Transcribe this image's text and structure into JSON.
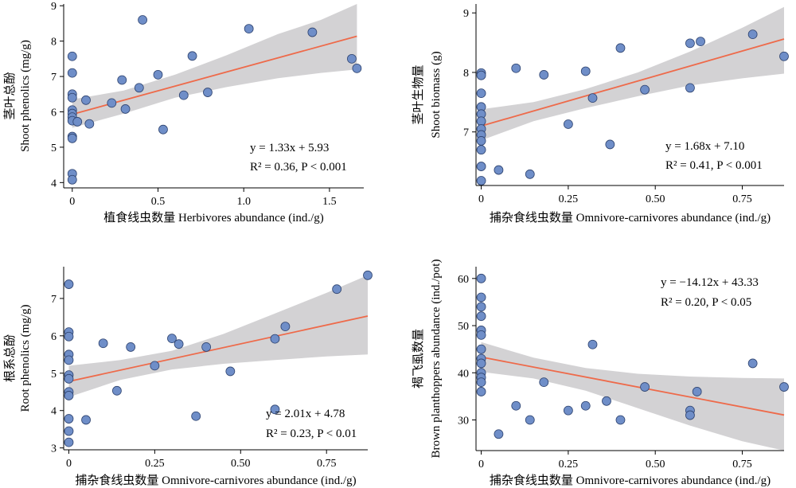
{
  "chart_data": [
    {
      "type": "scatter",
      "xlabel": "植食线虫数量 Herbivores abundance (ind./g)",
      "ylabel_cn": "茎叶总酚",
      "ylabel_en": "Shoot phenolics (mg/g)",
      "xlim": [
        -0.05,
        1.7
      ],
      "ylim": [
        3.85,
        9.05
      ],
      "xticks": [
        0,
        0.5,
        1.0,
        1.5
      ],
      "xtick_labels": [
        "0",
        "0.5",
        "1.0",
        "1.5"
      ],
      "yticks": [
        4,
        5,
        6,
        7,
        8,
        9
      ],
      "ytick_labels": [
        "4",
        "5",
        "6",
        "7",
        "8",
        "9"
      ],
      "equation": "y = 1.33x + 5.93",
      "stats": "R² = 0.36, P < 0.001",
      "fit": {
        "slope": 1.33,
        "intercept": 5.93,
        "x0": 0,
        "x1": 1.66
      },
      "band_upper": [
        [
          0,
          6.35
        ],
        [
          0.3,
          6.6
        ],
        [
          0.6,
          7.05
        ],
        [
          0.9,
          7.6
        ],
        [
          1.2,
          8.2
        ],
        [
          1.45,
          8.6
        ],
        [
          1.66,
          9.05
        ]
      ],
      "band_lower": [
        [
          0,
          5.55
        ],
        [
          0.3,
          5.95
        ],
        [
          0.6,
          6.4
        ],
        [
          0.9,
          6.7
        ],
        [
          1.2,
          6.95
        ],
        [
          1.45,
          7.1
        ],
        [
          1.66,
          7.2
        ]
      ],
      "points": [
        [
          0,
          7.57
        ],
        [
          0,
          7.1
        ],
        [
          0,
          6.5
        ],
        [
          0,
          6.4
        ],
        [
          0,
          6.05
        ],
        [
          0,
          5.95
        ],
        [
          0,
          5.85
        ],
        [
          0,
          5.75
        ],
        [
          0,
          5.3
        ],
        [
          0,
          5.25
        ],
        [
          0,
          4.25
        ],
        [
          0,
          4.08
        ],
        [
          0.03,
          5.72
        ],
        [
          0.08,
          6.33
        ],
        [
          0.1,
          5.66
        ],
        [
          0.23,
          6.25
        ],
        [
          0.29,
          6.9
        ],
        [
          0.31,
          6.08
        ],
        [
          0.39,
          6.68
        ],
        [
          0.41,
          8.6
        ],
        [
          0.5,
          7.05
        ],
        [
          0.53,
          5.5
        ],
        [
          0.65,
          6.47
        ],
        [
          0.7,
          7.58
        ],
        [
          0.79,
          6.55
        ],
        [
          1.03,
          8.35
        ],
        [
          1.4,
          8.25
        ],
        [
          1.63,
          7.5
        ],
        [
          1.66,
          7.23
        ]
      ]
    },
    {
      "type": "scatter",
      "xlabel": "捕杂食线虫数量 Omnivore-carnivores abundance (ind./g)",
      "ylabel_cn": "茎叶生物量",
      "ylabel_en": "Shoot biomass (g)",
      "xlim": [
        -0.015,
        0.87
      ],
      "ylim": [
        6.1,
        9.15
      ],
      "xticks": [
        0,
        0.25,
        0.5,
        0.75
      ],
      "xtick_labels": [
        "0",
        "0.25",
        "0.50",
        "0.75"
      ],
      "yticks": [
        7,
        8,
        9
      ],
      "ytick_labels": [
        "7",
        "8",
        "9"
      ],
      "equation": "y = 1.68x + 7.10",
      "stats": "R² = 0.41, P < 0.001",
      "fit": {
        "slope": 1.68,
        "intercept": 7.1,
        "x0": 0,
        "x1": 0.87
      },
      "band_upper": [
        [
          0,
          7.38
        ],
        [
          0.15,
          7.5
        ],
        [
          0.3,
          7.72
        ],
        [
          0.45,
          8.0
        ],
        [
          0.6,
          8.35
        ],
        [
          0.75,
          8.75
        ],
        [
          0.87,
          9.1
        ]
      ],
      "band_lower": [
        [
          0,
          6.86
        ],
        [
          0.15,
          7.18
        ],
        [
          0.3,
          7.4
        ],
        [
          0.45,
          7.6
        ],
        [
          0.6,
          7.78
        ],
        [
          0.75,
          7.9
        ],
        [
          0.87,
          7.98
        ]
      ],
      "points": [
        [
          0,
          7.99
        ],
        [
          0,
          7.95
        ],
        [
          0,
          7.65
        ],
        [
          0,
          7.42
        ],
        [
          0,
          7.3
        ],
        [
          0,
          7.18
        ],
        [
          0,
          7.05
        ],
        [
          0,
          6.95
        ],
        [
          0,
          6.85
        ],
        [
          0,
          6.7
        ],
        [
          0,
          6.42
        ],
        [
          0,
          6.18
        ],
        [
          0.05,
          6.36
        ],
        [
          0.1,
          8.07
        ],
        [
          0.14,
          6.29
        ],
        [
          0.18,
          7.96
        ],
        [
          0.25,
          7.13
        ],
        [
          0.3,
          8.02
        ],
        [
          0.32,
          7.57
        ],
        [
          0.37,
          6.79
        ],
        [
          0.4,
          8.41
        ],
        [
          0.47,
          7.71
        ],
        [
          0.6,
          7.74
        ],
        [
          0.6,
          8.49
        ],
        [
          0.63,
          8.52
        ],
        [
          0.78,
          8.64
        ],
        [
          0.87,
          8.27
        ]
      ]
    },
    {
      "type": "scatter",
      "xlabel": "捕杂食线虫数量 Omnivore-carnivores abundance (ind./g)",
      "ylabel_cn": "根系总酚",
      "ylabel_en": "Root phenolics (mg/g)",
      "xlim": [
        -0.015,
        0.87
      ],
      "ylim": [
        2.95,
        7.85
      ],
      "xticks": [
        0,
        0.25,
        0.5,
        0.75
      ],
      "xtick_labels": [
        "0",
        "0.25",
        "0.50",
        "0.75"
      ],
      "yticks": [
        3,
        4,
        5,
        6,
        7
      ],
      "ytick_labels": [
        "3",
        "4",
        "5",
        "6",
        "7"
      ],
      "equation": "y = 2.01x + 4.78",
      "stats": "R² = 0.23, P < 0.01",
      "fit": {
        "slope": 2.01,
        "intercept": 4.78,
        "x0": 0,
        "x1": 0.87
      },
      "band_upper": [
        [
          0,
          5.2
        ],
        [
          0.15,
          5.35
        ],
        [
          0.3,
          5.6
        ],
        [
          0.45,
          6.05
        ],
        [
          0.6,
          6.6
        ],
        [
          0.75,
          7.15
        ],
        [
          0.87,
          7.62
        ]
      ],
      "band_lower": [
        [
          0,
          4.36
        ],
        [
          0.15,
          4.82
        ],
        [
          0.3,
          5.1
        ],
        [
          0.45,
          5.25
        ],
        [
          0.6,
          5.35
        ],
        [
          0.75,
          5.45
        ],
        [
          0.87,
          5.5
        ]
      ],
      "points": [
        [
          0,
          7.38
        ],
        [
          0,
          6.1
        ],
        [
          0,
          5.98
        ],
        [
          0,
          5.5
        ],
        [
          0,
          5.35
        ],
        [
          0,
          4.95
        ],
        [
          0,
          4.85
        ],
        [
          0,
          4.5
        ],
        [
          0,
          4.4
        ],
        [
          0,
          3.78
        ],
        [
          0,
          3.45
        ],
        [
          0,
          3.15
        ],
        [
          0.05,
          3.75
        ],
        [
          0.1,
          5.8
        ],
        [
          0.14,
          4.53
        ],
        [
          0.18,
          5.7
        ],
        [
          0.25,
          5.2
        ],
        [
          0.3,
          5.93
        ],
        [
          0.32,
          5.78
        ],
        [
          0.37,
          3.85
        ],
        [
          0.4,
          5.7
        ],
        [
          0.47,
          5.05
        ],
        [
          0.6,
          4.03
        ],
        [
          0.6,
          5.92
        ],
        [
          0.63,
          6.25
        ],
        [
          0.78,
          7.25
        ],
        [
          0.87,
          7.62
        ]
      ]
    },
    {
      "type": "scatter",
      "xlabel": "捕杂食线虫数量 Omnivore-carnivores abundance (ind./g)",
      "ylabel_cn": "褐飞虱数量",
      "ylabel_en": "Brown planthoppers abundance (ind./pot)",
      "xlim": [
        -0.015,
        0.87
      ],
      "ylim": [
        23.5,
        62.5
      ],
      "xticks": [
        0,
        0.25,
        0.5,
        0.75
      ],
      "xtick_labels": [
        "0",
        "0.25",
        "0.50",
        "0.75"
      ],
      "yticks": [
        30,
        40,
        50,
        60
      ],
      "ytick_labels": [
        "30",
        "40",
        "50",
        "60"
      ],
      "equation": "y = −14.12x + 43.33",
      "stats": "R² = 0.20, P < 0.05",
      "fit": {
        "slope": -14.12,
        "intercept": 43.33,
        "x0": 0,
        "x1": 0.87
      },
      "band_upper": [
        [
          0,
          46.5
        ],
        [
          0.15,
          43.2
        ],
        [
          0.3,
          41.0
        ],
        [
          0.45,
          39.8
        ],
        [
          0.6,
          39.2
        ],
        [
          0.75,
          38.9
        ],
        [
          0.87,
          38.8
        ]
      ],
      "band_lower": [
        [
          0,
          40.2
        ],
        [
          0.15,
          38.8
        ],
        [
          0.3,
          36.2
        ],
        [
          0.45,
          32.5
        ],
        [
          0.6,
          28.8
        ],
        [
          0.75,
          25.5
        ],
        [
          0.87,
          23.5
        ]
      ],
      "points": [
        [
          0,
          60
        ],
        [
          0,
          56
        ],
        [
          0,
          54
        ],
        [
          0,
          52
        ],
        [
          0,
          49
        ],
        [
          0,
          48
        ],
        [
          0,
          45
        ],
        [
          0,
          43
        ],
        [
          0,
          42
        ],
        [
          0,
          40
        ],
        [
          0,
          39
        ],
        [
          0,
          38
        ],
        [
          0,
          36
        ],
        [
          0.05,
          27
        ],
        [
          0.1,
          33
        ],
        [
          0.14,
          30
        ],
        [
          0.18,
          38
        ],
        [
          0.25,
          32
        ],
        [
          0.3,
          33
        ],
        [
          0.32,
          46
        ],
        [
          0.36,
          34
        ],
        [
          0.4,
          30
        ],
        [
          0.47,
          37
        ],
        [
          0.6,
          32
        ],
        [
          0.6,
          31
        ],
        [
          0.62,
          36
        ],
        [
          0.78,
          42
        ],
        [
          0.87,
          37
        ]
      ]
    }
  ]
}
